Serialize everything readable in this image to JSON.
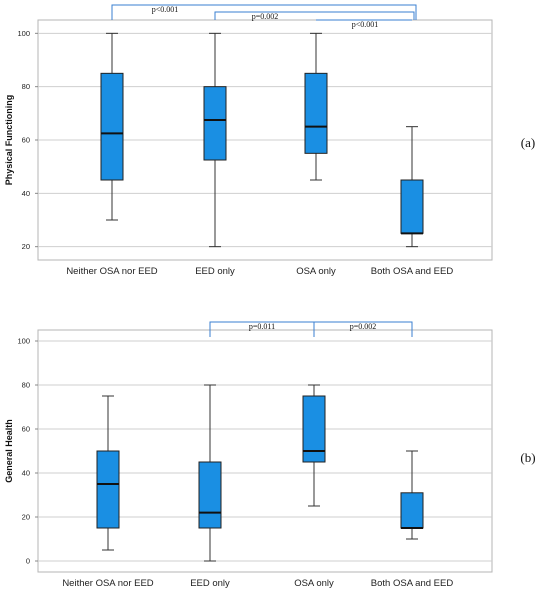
{
  "chart_data": [
    {
      "type": "box",
      "panel_label": "(a)",
      "ylabel": "Physical Functioning",
      "ylim": [
        15,
        105
      ],
      "yticks": [
        20,
        40,
        60,
        80,
        100
      ],
      "grid": true,
      "categories": [
        "Neither OSA nor EED",
        "EED only",
        "OSA only",
        "Both OSA and EED"
      ],
      "boxes": [
        {
          "min": 30,
          "q1": 45,
          "median": 62.5,
          "q3": 85,
          "max": 100
        },
        {
          "min": 20,
          "q1": 52.5,
          "median": 67.5,
          "q3": 80,
          "max": 100
        },
        {
          "min": 45,
          "q1": 55,
          "median": 65,
          "q3": 85,
          "max": 100
        },
        {
          "min": 20,
          "q1": 25,
          "median": 25,
          "q3": 45,
          "max": 65
        }
      ],
      "comparisons": [
        {
          "from": 0,
          "to": 3,
          "label": "p<0.001",
          "level": 2
        },
        {
          "from": 1,
          "to": 3,
          "label": "p=0.002",
          "level": 1
        },
        {
          "from": 2,
          "to": 3,
          "label": "p<0.001",
          "level": 0
        }
      ],
      "box_color": "#1a8fe3"
    },
    {
      "type": "box",
      "panel_label": "(b)",
      "ylabel": "General Health",
      "ylim": [
        -5,
        105
      ],
      "yticks": [
        0,
        20,
        40,
        60,
        80,
        100
      ],
      "grid": true,
      "categories": [
        "Neither OSA nor EED",
        "EED only",
        "OSA only",
        "Both OSA and EED"
      ],
      "boxes": [
        {
          "min": 5,
          "q1": 15,
          "median": 35,
          "q3": 50,
          "max": 75
        },
        {
          "min": 0,
          "q1": 15,
          "median": 22,
          "q3": 45,
          "max": 80
        },
        {
          "min": 25,
          "q1": 45,
          "median": 50,
          "q3": 75,
          "max": 80
        },
        {
          "min": 10,
          "q1": 15,
          "median": 15,
          "q3": 31,
          "max": 50
        }
      ],
      "comparisons": [
        {
          "from": 1,
          "to": 2,
          "label": "p=0.011",
          "level": 0
        },
        {
          "from": 2,
          "to": 3,
          "label": "p=0.002",
          "level": 0
        }
      ],
      "box_color": "#1a8fe3"
    }
  ]
}
